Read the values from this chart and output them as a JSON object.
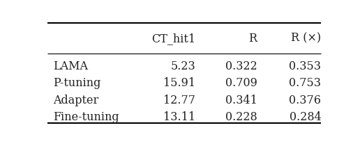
{
  "columns": [
    "",
    "CT_hit1",
    "R",
    "R (×)"
  ],
  "rows": [
    [
      "LAMA",
      "5.23",
      "0.322",
      "0.353"
    ],
    [
      "P-tuning",
      "15.91",
      "0.709",
      "0.753"
    ],
    [
      "Adapter",
      "12.77",
      "0.341",
      "0.376"
    ],
    [
      "Fine-tuning",
      "13.11",
      "0.228",
      "0.284"
    ]
  ],
  "text_color": "#222222",
  "font_size": 11.5,
  "fig_width": 5.16,
  "fig_height": 2.1
}
